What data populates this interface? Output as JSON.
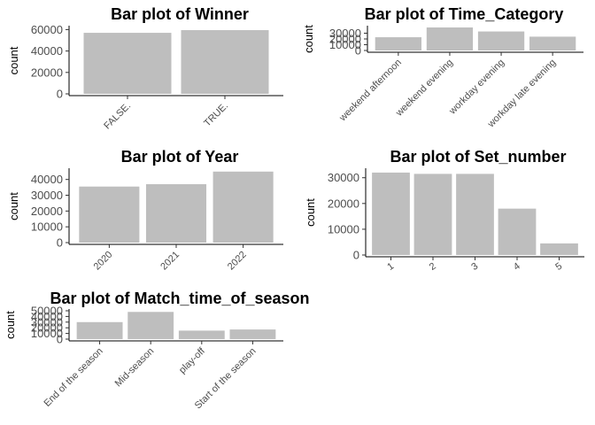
{
  "chart_data": [
    {
      "type": "bar",
      "title": "Bar plot of Winner",
      "ylabel": "count",
      "xlabel": "",
      "categories": [
        "FALSE.",
        "TRUE."
      ],
      "values": [
        57000,
        59500
      ],
      "ylim": [
        0,
        62000
      ],
      "yticks": [
        0,
        20000,
        40000,
        60000
      ],
      "ytick_labels": [
        "0",
        "20000",
        "40000",
        "60000"
      ],
      "grid": false
    },
    {
      "type": "bar",
      "title": "Bar plot of Time_Category",
      "ylabel": "count",
      "xlabel": "",
      "categories": [
        "weekend afternoon",
        "weekend evening",
        "workday evening",
        "workday late evening"
      ],
      "values": [
        23000,
        40000,
        33000,
        24000
      ],
      "ylim": [
        0,
        40000
      ],
      "yticks": [
        0,
        10000,
        20000,
        30000
      ],
      "ytick_labels": [
        "0",
        "10000",
        "20000",
        "30000"
      ],
      "grid": false
    },
    {
      "type": "bar",
      "title": "Bar plot of Year",
      "ylabel": "count",
      "xlabel": "",
      "categories": [
        "2020",
        "2021",
        "2022"
      ],
      "values": [
        35500,
        37000,
        45000
      ],
      "ylim": [
        0,
        46000
      ],
      "yticks": [
        0,
        10000,
        20000,
        30000,
        40000
      ],
      "ytick_labels": [
        "0",
        "10000",
        "20000",
        "30000",
        "40000"
      ],
      "grid": false
    },
    {
      "type": "bar",
      "title": "Bar plot of Set_number",
      "ylabel": "count",
      "xlabel": "",
      "categories": [
        "1",
        "2",
        "3",
        "4",
        "5"
      ],
      "values": [
        32000,
        31500,
        31500,
        18000,
        4500
      ],
      "ylim": [
        0,
        33000
      ],
      "yticks": [
        0,
        10000,
        20000,
        30000
      ],
      "ytick_labels": [
        "0",
        "10000",
        "20000",
        "30000"
      ],
      "grid": false
    },
    {
      "type": "bar",
      "title": "Bar plot of Match_time_of_season",
      "ylabel": "count",
      "xlabel": "",
      "categories": [
        "End of the season",
        "Mid-season",
        "play-off",
        "Start of the season"
      ],
      "values": [
        30000,
        48000,
        15000,
        17000
      ],
      "ylim": [
        0,
        50000
      ],
      "yticks": [
        0,
        10000,
        20000,
        30000,
        40000,
        50000
      ],
      "ytick_labels": [
        "0",
        "10000",
        "20000",
        "30000",
        "40000",
        "50000"
      ],
      "grid": false
    }
  ]
}
